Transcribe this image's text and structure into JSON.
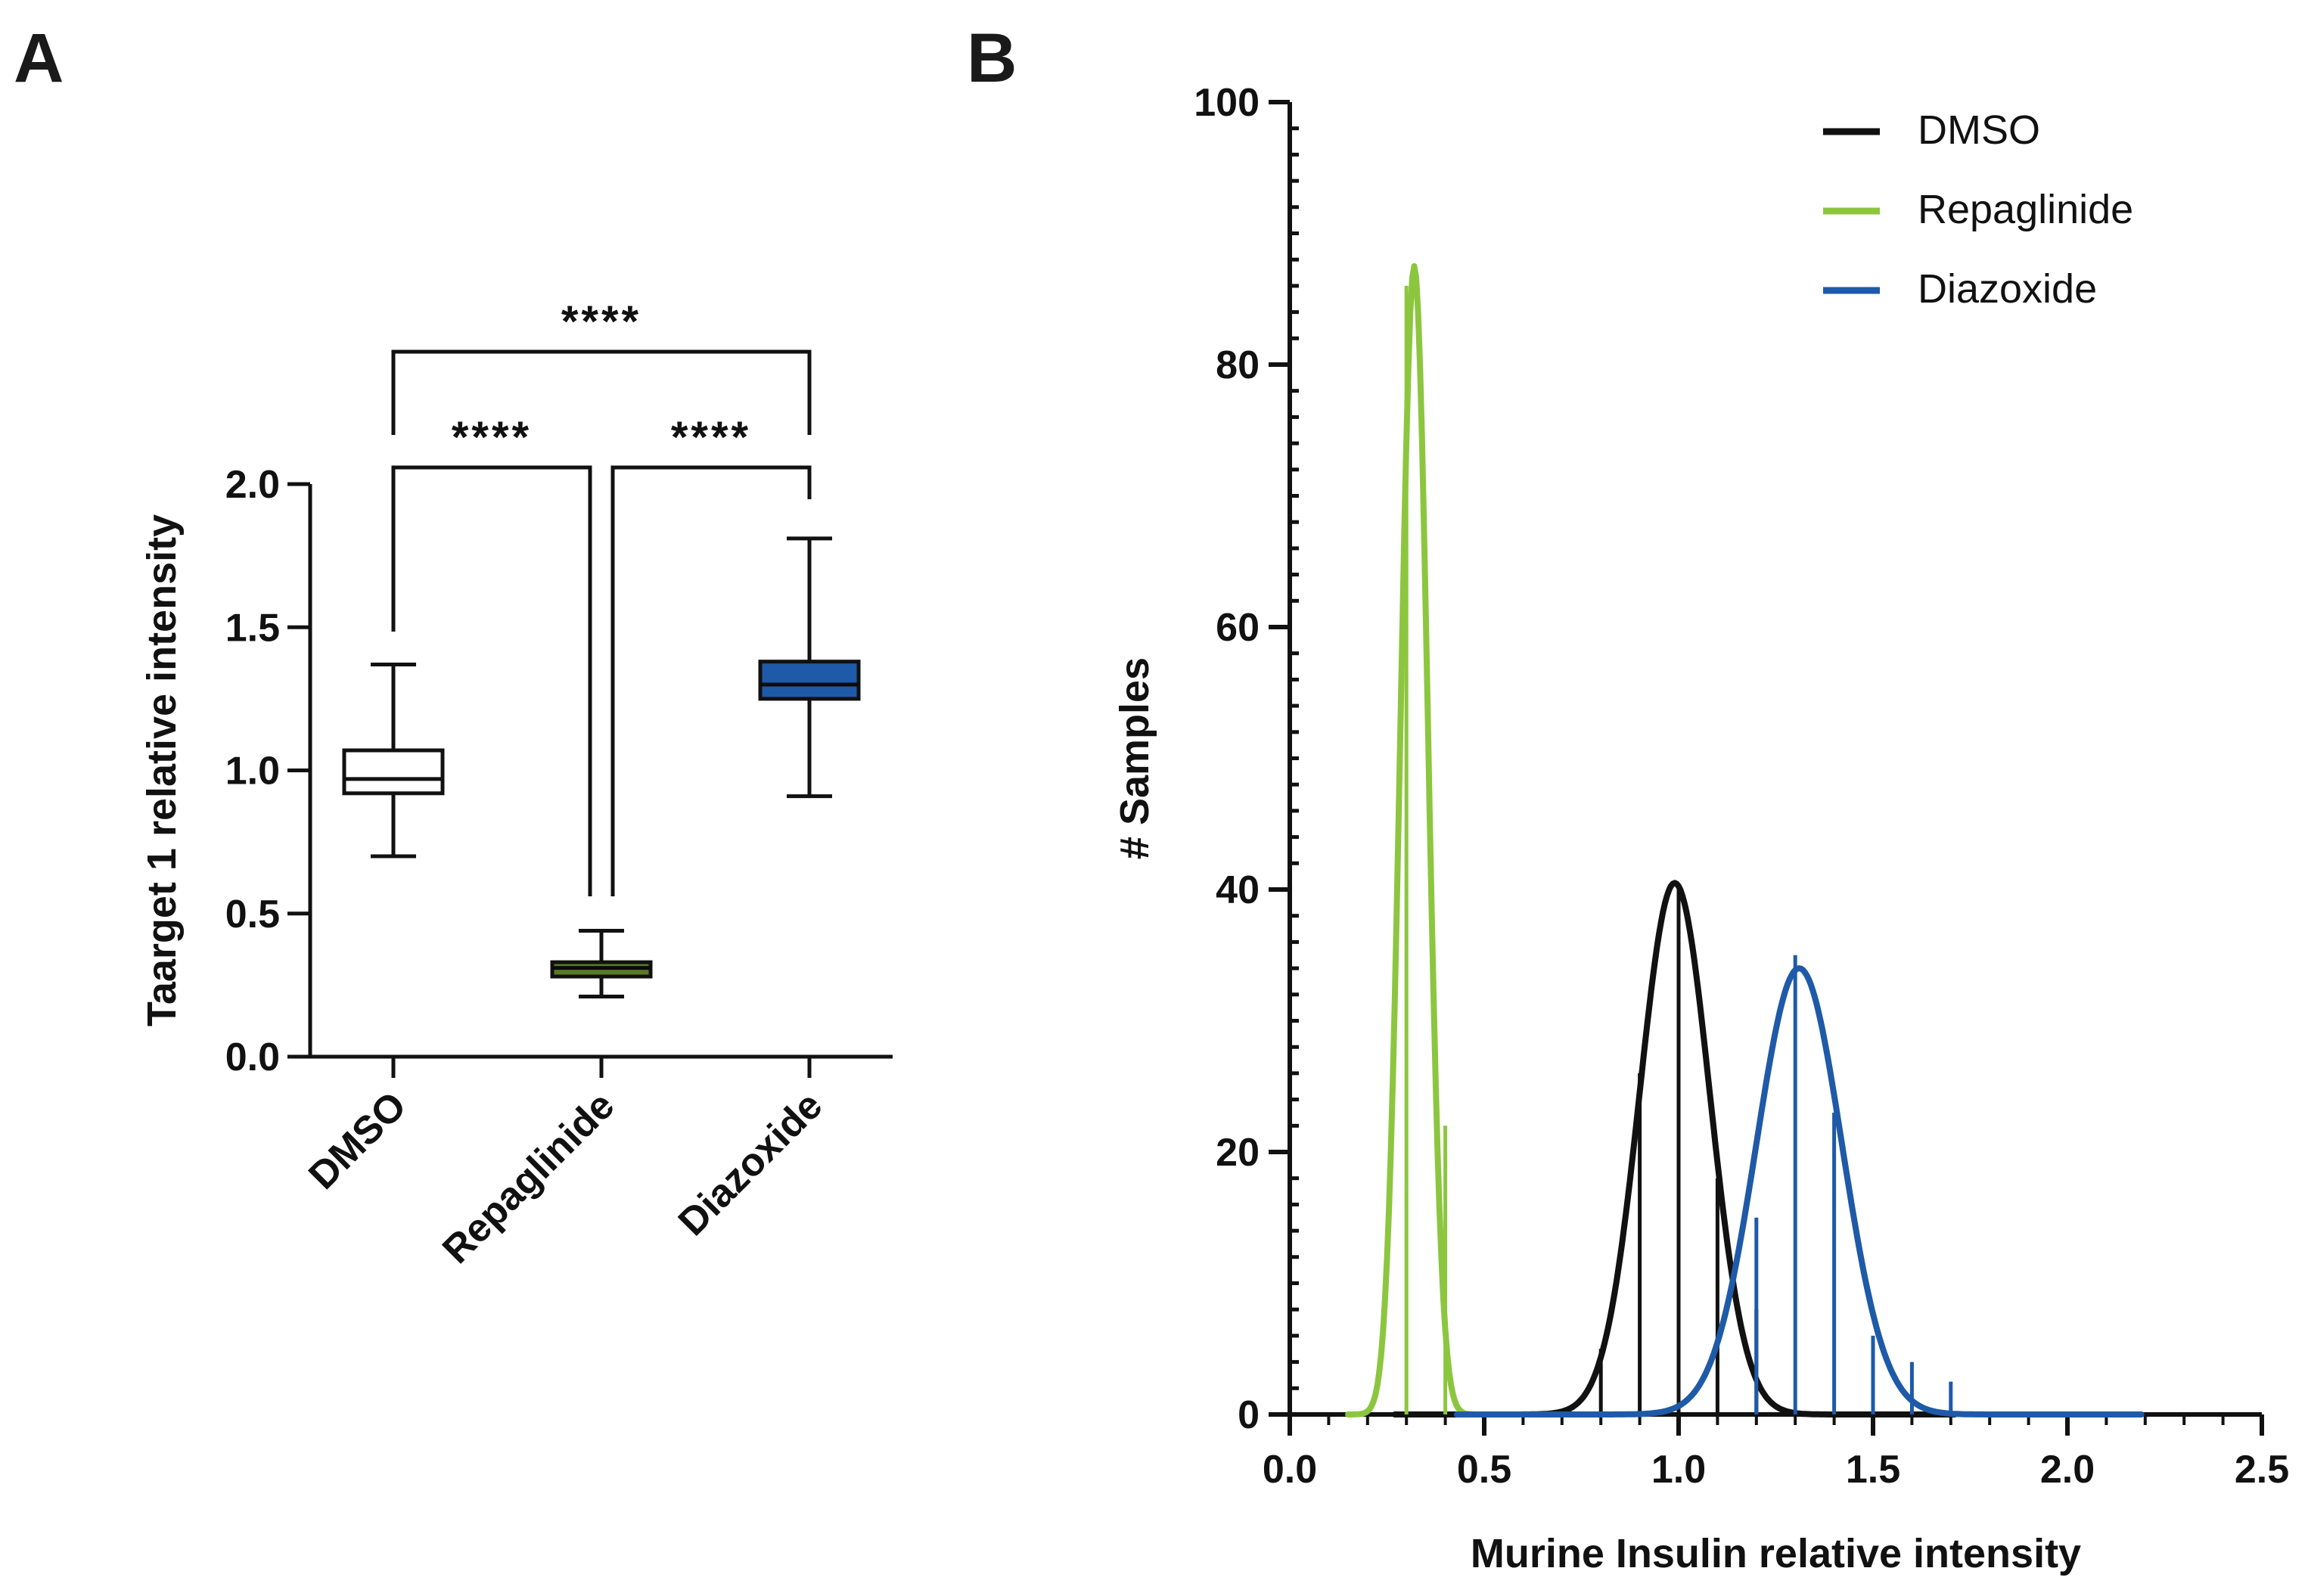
{
  "chart_data": [
    {
      "panel": "A",
      "type": "box",
      "title": "",
      "xlabel": "",
      "ylabel": "Taarget 1 relative intensity",
      "ylim": [
        0,
        2.0
      ],
      "yticks": [
        0.0,
        0.5,
        1.0,
        1.5,
        2.0
      ],
      "ytick_labels": [
        "0.0",
        "0.5",
        "1.0",
        "1.5",
        "2.0"
      ],
      "categories": [
        "DMSO",
        "Repaglinide",
        "Diazoxide"
      ],
      "boxes": [
        {
          "name": "DMSO",
          "min": 0.7,
          "q1": 0.92,
          "median": 0.97,
          "q3": 1.07,
          "max": 1.37,
          "color": "#ffffff"
        },
        {
          "name": "Repaglinide",
          "min": 0.21,
          "q1": 0.28,
          "median": 0.31,
          "q3": 0.33,
          "max": 0.44,
          "color": "#5a7a28"
        },
        {
          "name": "Diazoxide",
          "min": 0.91,
          "q1": 1.25,
          "median": 1.3,
          "q3": 1.38,
          "max": 1.81,
          "color": "#1e5aa8"
        }
      ],
      "significance": [
        {
          "from": "DMSO",
          "to": "Diazoxide",
          "label": "****"
        },
        {
          "from": "DMSO",
          "to": "Repaglinide",
          "label": "****"
        },
        {
          "from": "Repaglinide",
          "to": "Diazoxide",
          "label": "****"
        }
      ]
    },
    {
      "panel": "B",
      "type": "histogram_with_gaussian_fit",
      "title": "",
      "xlabel": "Murine Insulin relative intensity",
      "ylabel": "# Samples",
      "xlim": [
        0,
        2.5
      ],
      "ylim": [
        0,
        100
      ],
      "xticks": [
        0.0,
        0.5,
        1.0,
        1.5,
        2.0,
        2.5
      ],
      "xtick_labels": [
        "0.0",
        "0.5",
        "1.0",
        "1.5",
        "2.0",
        "2.5"
      ],
      "yticks": [
        0,
        20,
        40,
        60,
        80,
        100
      ],
      "ytick_labels": [
        "0",
        "20",
        "40",
        "60",
        "80",
        "100"
      ],
      "legend_position": "top-right",
      "series": [
        {
          "name": "DMSO",
          "color": "#111111",
          "fit": {
            "mean": 0.99,
            "sd": 0.09,
            "peak": 40.5
          },
          "bars": [
            {
              "x": 0.8,
              "y": 5
            },
            {
              "x": 0.9,
              "y": 26
            },
            {
              "x": 1.0,
              "y": 40
            },
            {
              "x": 1.1,
              "y": 18
            },
            {
              "x": 1.2,
              "y": 8
            }
          ]
        },
        {
          "name": "Repaglinide",
          "color": "#8cc63f",
          "fit": {
            "mean": 0.32,
            "sd": 0.035,
            "peak": 87.5
          },
          "bars": [
            {
              "x": 0.3,
              "y": 86
            },
            {
              "x": 0.4,
              "y": 22
            }
          ]
        },
        {
          "name": "Diazoxide",
          "color": "#1e5aa8",
          "fit": {
            "mean": 1.31,
            "sd": 0.11,
            "peak": 34
          },
          "bars": [
            {
              "x": 1.2,
              "y": 15
            },
            {
              "x": 1.3,
              "y": 35
            },
            {
              "x": 1.4,
              "y": 23
            },
            {
              "x": 1.5,
              "y": 6
            },
            {
              "x": 1.6,
              "y": 4
            },
            {
              "x": 1.7,
              "y": 2.5
            }
          ]
        }
      ]
    }
  ]
}
